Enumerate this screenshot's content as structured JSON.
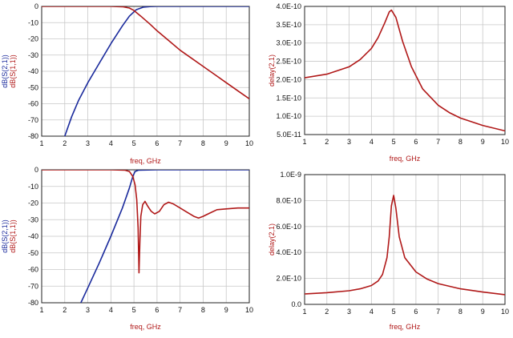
{
  "colors": {
    "s21": "#1a2a9c",
    "s11": "#b01818",
    "delay": "#b01818",
    "grid": "#c8c8c8",
    "axis": "#222222",
    "xlabel": "#b01818"
  },
  "chart_data": [
    {
      "type": "line",
      "id": "top-left",
      "xlabel": "freq, GHz",
      "ylabel_parts": [
        {
          "text": "dB(S(2,1))",
          "color": "#1a2a9c"
        },
        {
          "text": "dB(S(1,1))",
          "color": "#b01818"
        }
      ],
      "xlim": [
        1,
        10
      ],
      "ylim": [
        -80,
        0
      ],
      "x_ticks": [
        1,
        2,
        3,
        4,
        5,
        6,
        7,
        8,
        9,
        10
      ],
      "y_ticks": [
        0,
        -10,
        -20,
        -30,
        -40,
        -50,
        -60,
        -70,
        -80
      ],
      "x_tick_labels": [
        "1",
        "2",
        "3",
        "4",
        "5",
        "6",
        "7",
        "8",
        "9",
        "10"
      ],
      "y_tick_labels": [
        "0",
        "-10",
        "-20",
        "-30",
        "-40",
        "-50",
        "-60",
        "-70",
        "-80"
      ],
      "grid": true,
      "series": [
        {
          "key": "s21",
          "color": "#1a2a9c",
          "x": [
            2,
            2.3,
            2.6,
            3,
            3.5,
            4,
            4.5,
            4.8,
            5.1,
            5.4,
            5.7,
            6,
            7,
            8,
            9,
            10
          ],
          "y": [
            -80,
            -68,
            -58,
            -47,
            -35,
            -23,
            -12,
            -6,
            -2,
            -0.5,
            -0.1,
            0,
            0,
            0,
            0,
            0
          ]
        },
        {
          "key": "s11",
          "color": "#b01818",
          "x": [
            1,
            2,
            3,
            4,
            4.5,
            4.8,
            5,
            5.3,
            5.7,
            6,
            6.5,
            7,
            7.5,
            8,
            8.5,
            9,
            9.5,
            10
          ],
          "y": [
            0,
            0,
            0,
            0,
            -0.2,
            -1,
            -2.5,
            -6,
            -11,
            -15,
            -21,
            -27,
            -32,
            -37,
            -42,
            -47,
            -52,
            -57
          ]
        }
      ]
    },
    {
      "type": "line",
      "id": "top-right",
      "xlabel": "freq, GHz",
      "ylabel_parts": [
        {
          "text": "delay(2,1)",
          "color": "#b01818"
        }
      ],
      "xlim": [
        1,
        10
      ],
      "ylim": [
        5e-11,
        4e-10
      ],
      "x_ticks": [
        1,
        2,
        3,
        4,
        5,
        6,
        7,
        8,
        9,
        10
      ],
      "y_ticks": [
        5e-11,
        1e-10,
        1.5e-10,
        2e-10,
        2.5e-10,
        3e-10,
        3.5e-10,
        4e-10
      ],
      "x_tick_labels": [
        "1",
        "2",
        "3",
        "4",
        "5",
        "6",
        "7",
        "8",
        "9",
        "10"
      ],
      "y_tick_labels": [
        "5.0E-11",
        "1.0E-10",
        "1.5E-10",
        "2.0E-10",
        "2.5E-10",
        "3.0E-10",
        "3.5E-10",
        "4.0E-10"
      ],
      "grid": true,
      "series": [
        {
          "key": "delay",
          "color": "#b01818",
          "x": [
            1,
            2,
            3,
            3.5,
            4,
            4.3,
            4.6,
            4.8,
            4.9,
            5.1,
            5.4,
            5.8,
            6.3,
            7,
            7.5,
            8,
            9,
            10
          ],
          "y": [
            2.05e-10,
            2.15e-10,
            2.35e-10,
            2.55e-10,
            2.85e-10,
            3.15e-10,
            3.55e-10,
            3.85e-10,
            3.9e-10,
            3.7e-10,
            3.05e-10,
            2.35e-10,
            1.75e-10,
            1.3e-10,
            1.1e-10,
            9.5e-11,
            7.5e-11,
            6e-11
          ]
        }
      ]
    },
    {
      "type": "line",
      "id": "bottom-left",
      "xlabel": "freq, GHz",
      "ylabel_parts": [
        {
          "text": "dB(S(2,1))",
          "color": "#1a2a9c"
        },
        {
          "text": "dB(S(1,1))",
          "color": "#b01818"
        }
      ],
      "xlim": [
        1,
        10
      ],
      "ylim": [
        -80,
        0
      ],
      "x_ticks": [
        1,
        2,
        3,
        4,
        5,
        6,
        7,
        8,
        9,
        10
      ],
      "y_ticks": [
        0,
        -10,
        -20,
        -30,
        -40,
        -50,
        -60,
        -70,
        -80
      ],
      "x_tick_labels": [
        "1",
        "2",
        "3",
        "4",
        "5",
        "6",
        "7",
        "8",
        "9",
        "10"
      ],
      "y_tick_labels": [
        "0",
        "-10",
        "-20",
        "-30",
        "-40",
        "-50",
        "-60",
        "-70",
        "-80"
      ],
      "grid": true,
      "series": [
        {
          "key": "s21",
          "color": "#1a2a9c",
          "x": [
            2.7,
            3,
            3.5,
            4,
            4.5,
            4.8,
            4.95,
            5.05,
            5.2,
            6,
            7,
            8,
            9,
            10
          ],
          "y": [
            -80,
            -71,
            -56,
            -40,
            -23,
            -11,
            -4,
            -1,
            -0.2,
            0,
            0,
            0,
            0,
            0
          ]
        },
        {
          "key": "s11",
          "color": "#b01818",
          "x": [
            1,
            2,
            3,
            4,
            4.6,
            4.8,
            4.95,
            5.05,
            5.12,
            5.18,
            5.22,
            5.26,
            5.3,
            5.38,
            5.48,
            5.6,
            5.75,
            5.9,
            6.1,
            6.3,
            6.5,
            6.7,
            7,
            7.3,
            7.6,
            7.8,
            8,
            8.3,
            8.6,
            9,
            9.5,
            10
          ],
          "y": [
            0,
            0,
            0,
            0,
            -0.2,
            -1,
            -4,
            -9,
            -18,
            -35,
            -62,
            -42,
            -28,
            -21,
            -19,
            -22,
            -25,
            -26.5,
            -25,
            -21,
            -19.5,
            -20.5,
            -23,
            -25.5,
            -28,
            -29,
            -28,
            -26,
            -24,
            -23.5,
            -23,
            -23
          ]
        }
      ]
    },
    {
      "type": "line",
      "id": "bottom-right",
      "xlabel": "freq, GHz",
      "ylabel_parts": [
        {
          "text": "delay(2,1)",
          "color": "#b01818"
        }
      ],
      "xlim": [
        1,
        10
      ],
      "ylim": [
        0,
        1e-09
      ],
      "x_ticks": [
        1,
        2,
        3,
        4,
        5,
        6,
        7,
        8,
        9,
        10
      ],
      "y_ticks": [
        0,
        2e-10,
        4e-10,
        6e-10,
        8e-10,
        1e-09
      ],
      "x_tick_labels": [
        "1",
        "2",
        "3",
        "4",
        "5",
        "6",
        "7",
        "8",
        "9",
        "10"
      ],
      "y_tick_labels": [
        "0.0",
        "2.0E-10",
        "4.0E-10",
        "6.0E-10",
        "8.0E-10",
        "1.0E-9"
      ],
      "grid": true,
      "series": [
        {
          "key": "delay",
          "color": "#b01818",
          "x": [
            1,
            2,
            3,
            3.5,
            4,
            4.3,
            4.5,
            4.7,
            4.8,
            4.9,
            5.0,
            5.1,
            5.25,
            5.5,
            6,
            6.5,
            7,
            8,
            9,
            10
          ],
          "y": [
            8e-11,
            9e-11,
            1.05e-10,
            1.2e-10,
            1.45e-10,
            1.8e-10,
            2.3e-10,
            3.6e-10,
            5.2e-10,
            7.6e-10,
            8.4e-10,
            7.4e-10,
            5.2e-10,
            3.6e-10,
            2.5e-10,
            1.95e-10,
            1.6e-10,
            1.2e-10,
            9.5e-11,
            7.5e-11
          ]
        }
      ]
    }
  ]
}
